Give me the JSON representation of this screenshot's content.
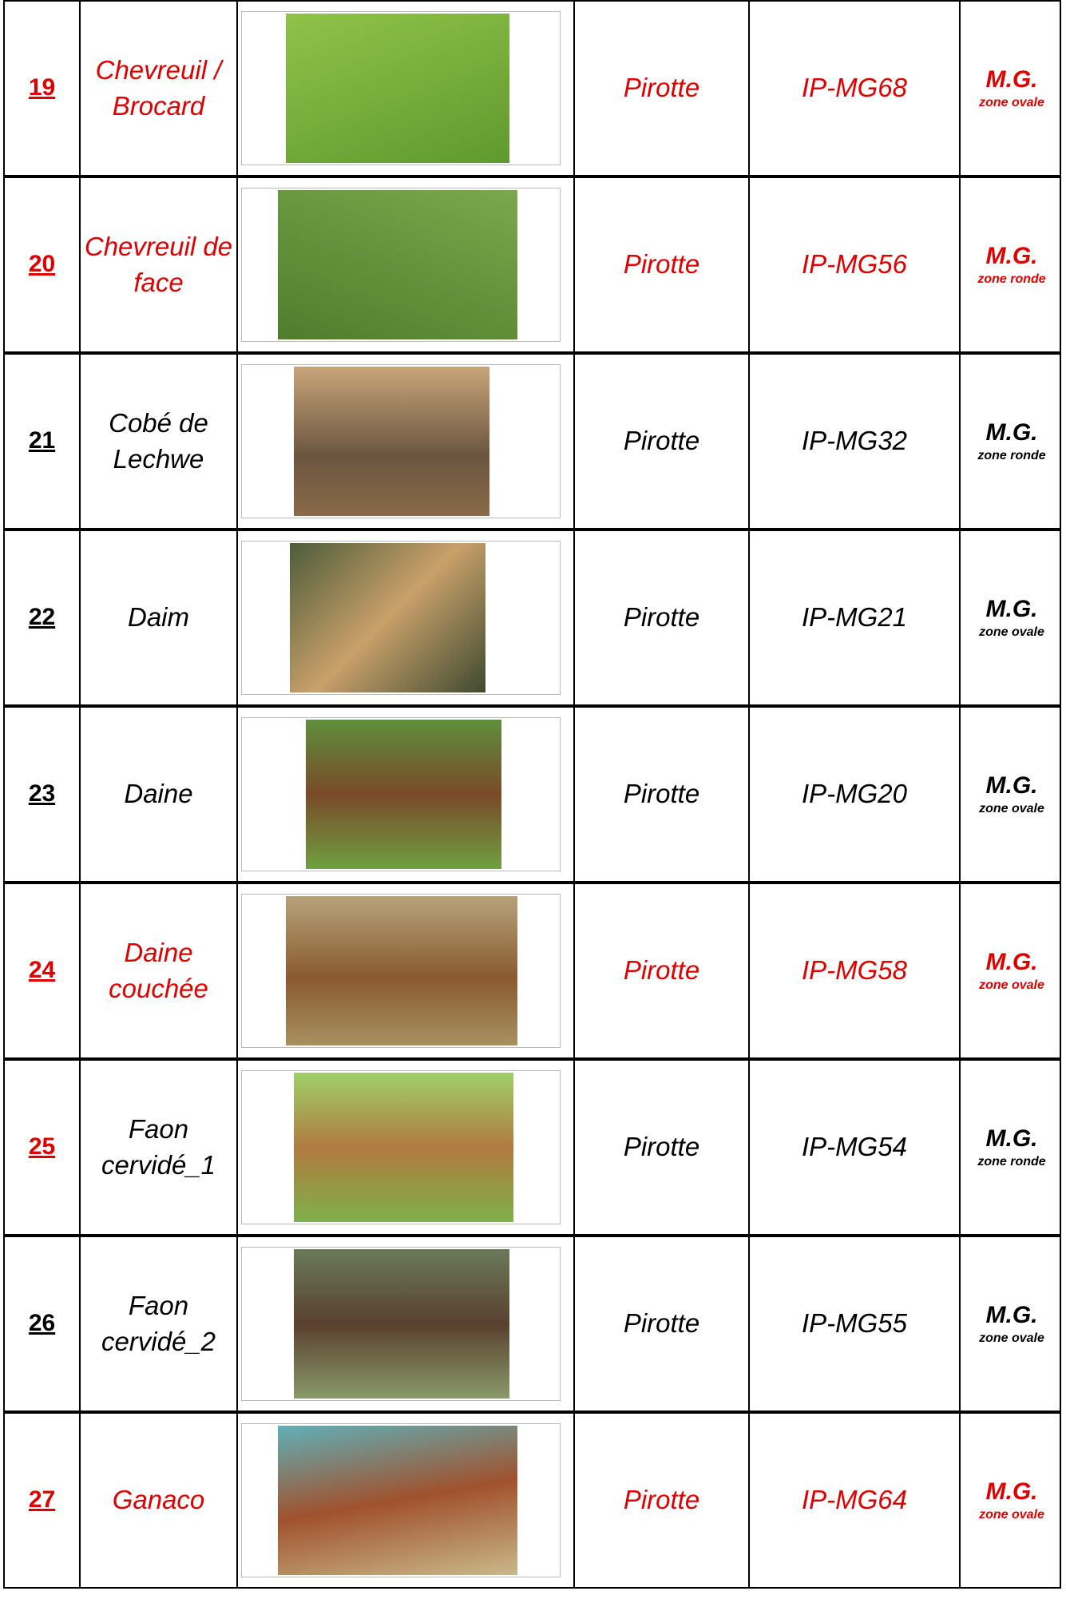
{
  "table": {
    "rows": [
      {
        "number": "19",
        "name": [
          "Chevreuil /",
          "Brocard"
        ],
        "supplier": "Pirotte",
        "ref": "IP-MG68",
        "zone": "M.G.",
        "zone_detail": "zone ovale",
        "number_color": "#e00000",
        "text_color": "#e00000"
      },
      {
        "number": "20",
        "name": [
          "Chevreuil de",
          "face"
        ],
        "supplier": "Pirotte",
        "ref": "IP-MG56",
        "zone": "M.G.",
        "zone_detail": "zone ronde",
        "number_color": "#e00000",
        "text_color": "#e00000"
      },
      {
        "number": "21",
        "name": [
          "Cobé de",
          "Lechwe"
        ],
        "supplier": "Pirotte",
        "ref": "IP-MG32",
        "zone": "M.G.",
        "zone_detail": "zone ronde",
        "number_color": "#000000",
        "text_color": "#000000"
      },
      {
        "number": "22",
        "name": [
          "Daim"
        ],
        "supplier": "Pirotte",
        "ref": "IP-MG21",
        "zone": "M.G.",
        "zone_detail": "zone ovale",
        "number_color": "#000000",
        "text_color": "#000000"
      },
      {
        "number": "23",
        "name": [
          "Daine"
        ],
        "supplier": "Pirotte",
        "ref": "IP-MG20",
        "zone": "M.G.",
        "zone_detail": "zone ovale",
        "number_color": "#000000",
        "text_color": "#000000"
      },
      {
        "number": "24",
        "name": [
          "Daine",
          "couchée"
        ],
        "supplier": "Pirotte",
        "ref": "IP-MG58",
        "zone": "M.G.",
        "zone_detail": "zone ovale",
        "number_color": "#e00000",
        "text_color": "#e00000"
      },
      {
        "number": "25",
        "name": [
          "Faon",
          "cervidé_1"
        ],
        "supplier": "Pirotte",
        "ref": "IP-MG54",
        "zone": "M.G.",
        "zone_detail": "zone ronde",
        "number_color": "#e00000",
        "text_color": "#000000"
      },
      {
        "number": "26",
        "name": [
          "Faon",
          "cervidé_2"
        ],
        "supplier": "Pirotte",
        "ref": "IP-MG55",
        "zone": "M.G.",
        "zone_detail": "zone ovale",
        "number_color": "#000000",
        "text_color": "#000000"
      },
      {
        "number": "27",
        "name": [
          "Ganaco"
        ],
        "supplier": "Pirotte",
        "ref": "IP-MG64",
        "zone": "M.G.",
        "zone_detail": "zone ovale",
        "number_color": "#e00000",
        "text_color": "#e00000"
      }
    ]
  }
}
